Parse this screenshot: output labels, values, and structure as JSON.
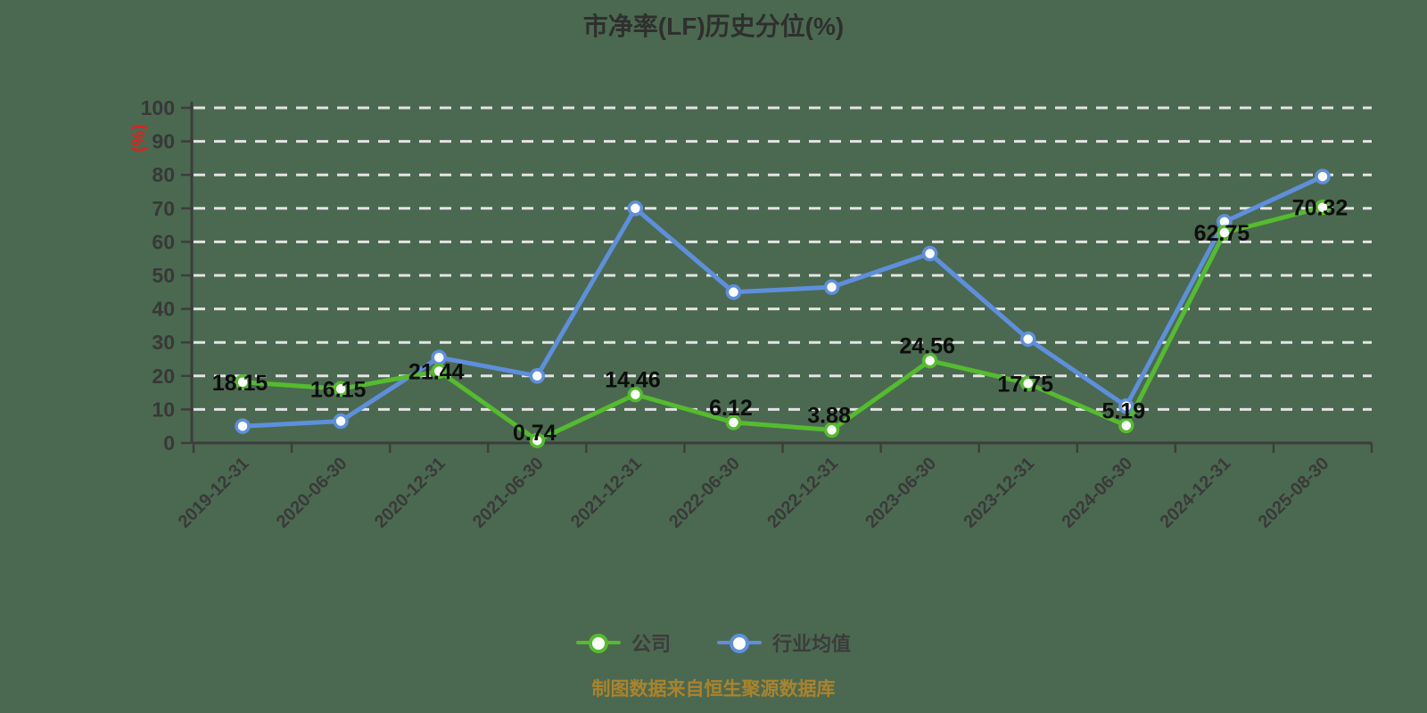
{
  "footer_note": "制图数据来自恒生聚源数据库",
  "colors": {
    "background": "#4b6950",
    "company_green": "#55bb2f",
    "industry_blue": "#5e8fdd",
    "gridline": "#e4e4e4",
    "axis": "#3d3d3d",
    "tick_label": "#383838",
    "title_text": "#2f2f2f",
    "y_unit_red": "#e02020",
    "data_label": "#0d0d0d",
    "footer_gold": "#ab832c",
    "marker_fill": "#ffffff"
  },
  "chart_data": {
    "type": "line",
    "title": "市净率(LF)历史分位(%)",
    "ylabel": "(%)",
    "xlabel": "",
    "ylim": [
      0,
      100
    ],
    "y_ticks": [
      0,
      10,
      20,
      30,
      40,
      50,
      60,
      70,
      80,
      90,
      100
    ],
    "grid": "horizontal-dashed",
    "legend_position": "bottom",
    "x_label_rotate": 45,
    "categories": [
      "2019-12-31",
      "2020-06-30",
      "2020-12-31",
      "2021-06-30",
      "2021-12-31",
      "2022-06-30",
      "2022-12-31",
      "2023-06-30",
      "2023-12-31",
      "2024-06-30",
      "2024-12-31",
      "2025-08-30"
    ],
    "series": [
      {
        "name": "公司",
        "color": "#55bb2f",
        "show_labels": true,
        "values": [
          18.15,
          16.15,
          21.44,
          0.74,
          14.46,
          6.12,
          3.88,
          24.56,
          17.75,
          5.19,
          62.75,
          70.32
        ],
        "label_positions": [
          "center",
          "center",
          "center",
          "center",
          "above",
          "above",
          "above",
          "above",
          "center",
          "above",
          "center",
          "center"
        ]
      },
      {
        "name": "行业均值",
        "color": "#5e8fdd",
        "show_labels": false,
        "values": [
          5,
          6.5,
          25.5,
          20,
          70,
          45,
          46.5,
          56.5,
          31,
          11,
          66,
          79.5
        ]
      }
    ]
  }
}
